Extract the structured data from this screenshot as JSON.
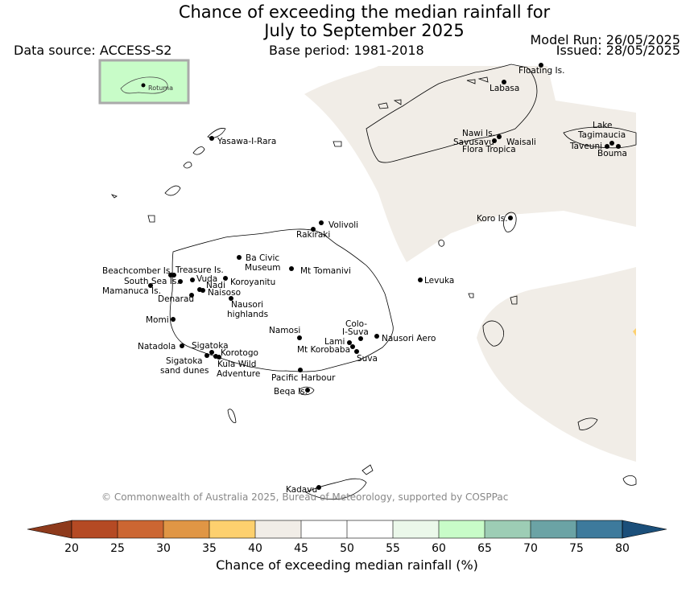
{
  "header": {
    "title_line1": "Chance of exceeding the median rainfall for",
    "title_line2": "July to September 2025",
    "data_source": "Data source: ACCESS-S2",
    "base_period": "Base period: 1981-2018",
    "model_run": "Model Run: 26/05/2025",
    "issued": "Issued: 28/05/2025"
  },
  "inset": {
    "label": "Rotuma"
  },
  "places": [
    "Floating Is.",
    "Labasa",
    "Yasawa-I-Rara",
    "Nawi Is.",
    "Savusavu",
    "Waisali",
    "Flora Tropica",
    "Lake",
    "Tagimaucia",
    "Taveuni",
    "Bouma",
    "Koro Is.",
    "Volivoli",
    "Rakiraki",
    "Ba Civic",
    "Museum",
    "Mt Tomanivi",
    "Beachcomber Is.",
    "Treasure Is.",
    "South Sea Is.",
    "Vuda",
    "Mamanuca Is.",
    "Nadi",
    "Koroyanitu",
    "Naisoso",
    "Denarau",
    "Levuka",
    "Nausori",
    "highlands",
    "Momi",
    "Colo-",
    "I-Suva",
    "Namosi",
    "Nausori Aero",
    "Lami",
    "Natadola",
    "Sigatoka",
    "Mt Korobaba",
    "Korotogo",
    "Suva",
    "Sigatoka",
    "sand dunes",
    "Kula Wild",
    "Adventure",
    "Pacific Harbour",
    "Beqa Is.",
    "Kadavu"
  ],
  "colorbar": {
    "ticks": [
      "20",
      "25",
      "30",
      "35",
      "40",
      "45",
      "50",
      "55",
      "60",
      "65",
      "70",
      "75",
      "80"
    ],
    "colors": [
      "#b54a24",
      "#cc6632",
      "#e09645",
      "#fdd06e",
      "#f1ede7",
      "#ffffff",
      "#ffffff",
      "#ebf8ea",
      "#c8fcc8",
      "#9dcdb5",
      "#6ba3a5",
      "#3d7a9c"
    ],
    "under_color": "#8e3a1c",
    "over_color": "#1b4f7a",
    "label": "Chance of exceeding median rainfall (%)"
  },
  "copyright": "© Commonwealth of Australia 2025, Bureau of Meteorology, supported by COSPPac"
}
